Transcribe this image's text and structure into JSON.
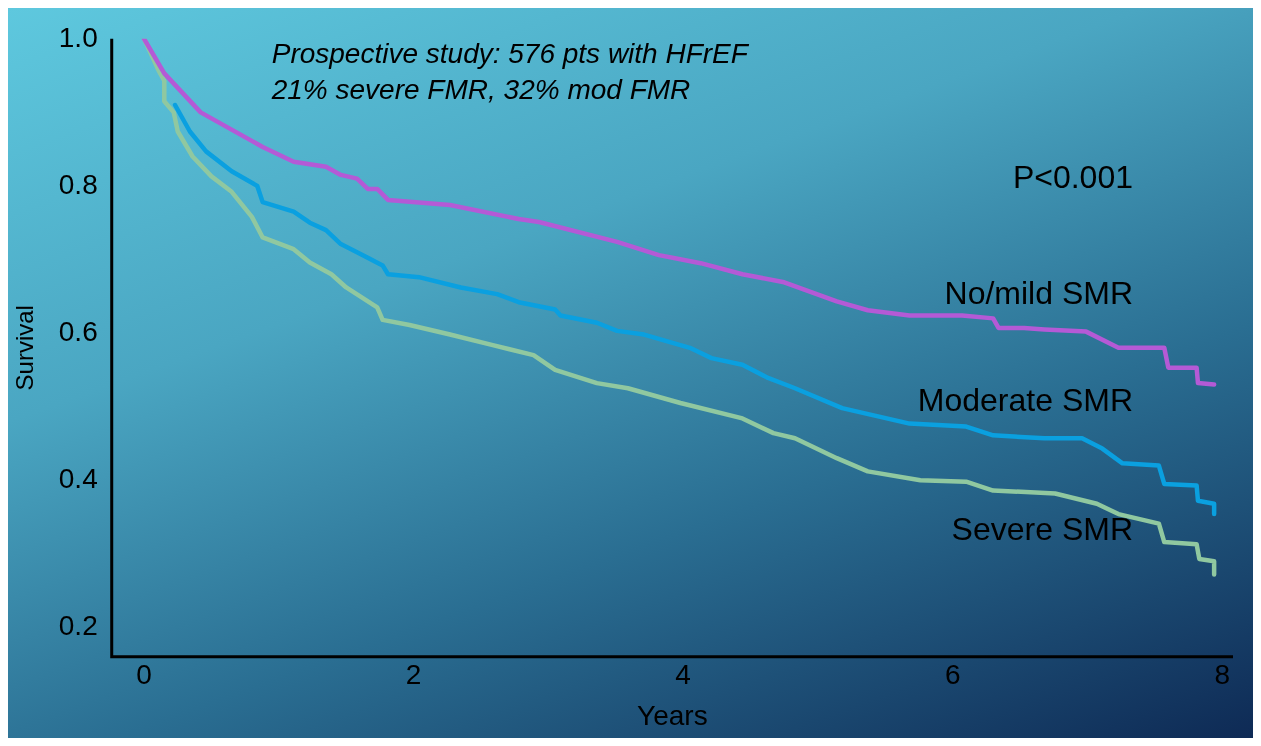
{
  "chart_data": {
    "type": "line",
    "xlabel": "Years",
    "ylabel": "Survival",
    "annotations": [
      "Prospective study: 576 pts with HFrEF\n21% severe FMR, 32% mod FMR",
      "P<0.001"
    ],
    "xlim": [
      -0.24,
      8.08
    ],
    "xticks": [
      0,
      2,
      4,
      6,
      8
    ],
    "ylim": [
      0.16,
      1.0
    ],
    "yticks": [
      {
        "value": 0.2,
        "label": "0.2"
      },
      {
        "value": 0.4,
        "label": "0.4"
      },
      {
        "value": 0.6,
        "label": "0.6"
      },
      {
        "value": 0.8,
        "label": "0.8"
      },
      {
        "value": 1.0,
        "label": "1.0"
      }
    ],
    "grid": false,
    "legend": false,
    "marker": "none",
    "line_style": "solid",
    "series": [
      {
        "name": "No/mild SMR",
        "color": "#b45ad6",
        "x": [
          0,
          0.15,
          0.42,
          0.88,
          1.11,
          1.35,
          1.46,
          1.58,
          1.66,
          1.73,
          1.81,
          2.27,
          2.78,
          2.93,
          3.51,
          3.82,
          4.13,
          4.44,
          4.75,
          5.14,
          5.37,
          5.68,
          6.07,
          6.3,
          6.34,
          6.53,
          6.68,
          6.99,
          7.23,
          7.57,
          7.6,
          7.81,
          7.82,
          7.94
        ],
        "values": [
          1.0,
          0.953,
          0.9,
          0.853,
          0.833,
          0.826,
          0.815,
          0.81,
          0.796,
          0.796,
          0.781,
          0.774,
          0.755,
          0.751,
          0.724,
          0.706,
          0.695,
          0.68,
          0.669,
          0.643,
          0.631,
          0.624,
          0.624,
          0.62,
          0.607,
          0.607,
          0.605,
          0.602,
          0.58,
          0.58,
          0.553,
          0.553,
          0.532,
          0.53
        ]
      },
      {
        "name": "Moderate SMR",
        "color": "#0aa0e0",
        "x": [
          0.23,
          0.34,
          0.46,
          0.65,
          0.84,
          0.88,
          1.11,
          1.23,
          1.35,
          1.46,
          1.58,
          1.77,
          1.81,
          2.04,
          2.35,
          2.62,
          2.78,
          3.05,
          3.09,
          3.36,
          3.51,
          3.71,
          4.05,
          4.21,
          4.44,
          4.63,
          4.83,
          5.18,
          5.68,
          6.1,
          6.3,
          6.68,
          6.96,
          7.11,
          7.26,
          7.53,
          7.57,
          7.81,
          7.82,
          7.94,
          7.94
        ],
        "values": [
          0.91,
          0.874,
          0.847,
          0.82,
          0.8,
          0.778,
          0.765,
          0.75,
          0.74,
          0.721,
          0.71,
          0.692,
          0.68,
          0.676,
          0.662,
          0.653,
          0.642,
          0.632,
          0.624,
          0.614,
          0.603,
          0.598,
          0.58,
          0.566,
          0.557,
          0.539,
          0.525,
          0.498,
          0.477,
          0.473,
          0.461,
          0.457,
          0.457,
          0.443,
          0.423,
          0.42,
          0.395,
          0.393,
          0.372,
          0.368,
          0.354
        ]
      },
      {
        "name": "Severe SMR",
        "color": "#90c8a0",
        "x": [
          0,
          0.11,
          0.15,
          0.15,
          0.22,
          0.25,
          0.36,
          0.5,
          0.65,
          0.8,
          0.88,
          1.11,
          1.23,
          1.39,
          1.5,
          1.73,
          1.77,
          1.97,
          2.27,
          2.58,
          2.89,
          3.05,
          3.36,
          3.59,
          3.98,
          4.44,
          4.67,
          4.83,
          5.14,
          5.37,
          5.76,
          6.1,
          6.3,
          6.76,
          7.07,
          7.23,
          7.53,
          7.57,
          7.81,
          7.83,
          7.94,
          7.94
        ],
        "values": [
          1.0,
          0.956,
          0.943,
          0.915,
          0.9,
          0.874,
          0.84,
          0.813,
          0.792,
          0.758,
          0.73,
          0.714,
          0.696,
          0.68,
          0.662,
          0.635,
          0.618,
          0.611,
          0.598,
          0.584,
          0.57,
          0.55,
          0.532,
          0.525,
          0.505,
          0.484,
          0.464,
          0.457,
          0.43,
          0.412,
          0.4,
          0.398,
          0.386,
          0.382,
          0.368,
          0.354,
          0.341,
          0.316,
          0.313,
          0.293,
          0.29,
          0.272
        ]
      }
    ]
  }
}
